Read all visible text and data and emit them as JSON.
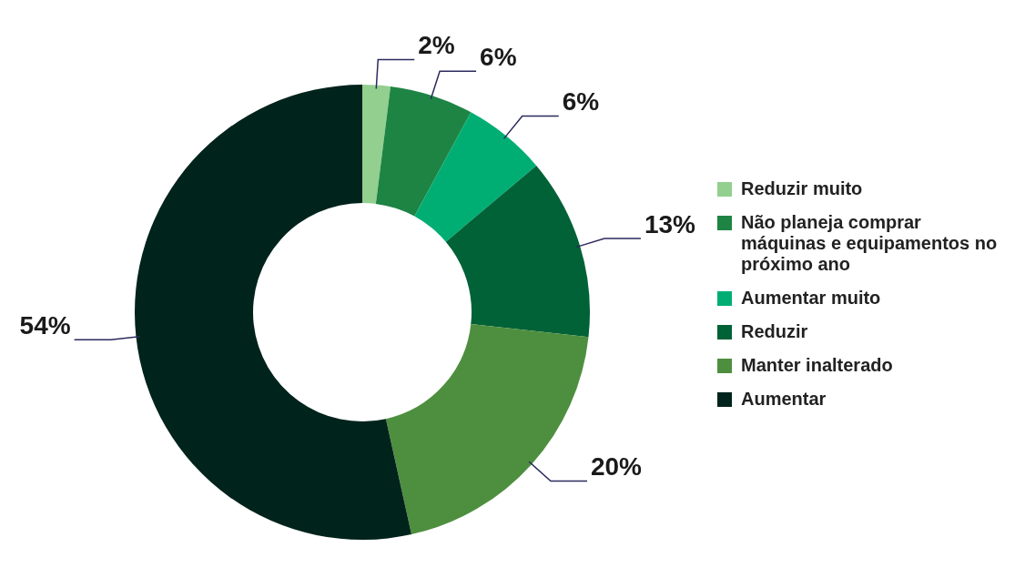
{
  "chart_data": {
    "type": "donut",
    "categories": [
      "Reduzir muito",
      "Não planeja comprar máquinas e equipamentos no próximo ano",
      "Aumentar muito",
      "Reduzir",
      "Manter inalterado",
      "Aumentar"
    ],
    "values": [
      2,
      6,
      6,
      13,
      20,
      54
    ],
    "value_labels": [
      "2%",
      "6%",
      "6%",
      "13%",
      "20%",
      "54%"
    ],
    "colors": [
      "#93cf8e",
      "#1e8444",
      "#00ae73",
      "#006236",
      "#4e8f3f",
      "#00231b"
    ],
    "legend": "right"
  }
}
